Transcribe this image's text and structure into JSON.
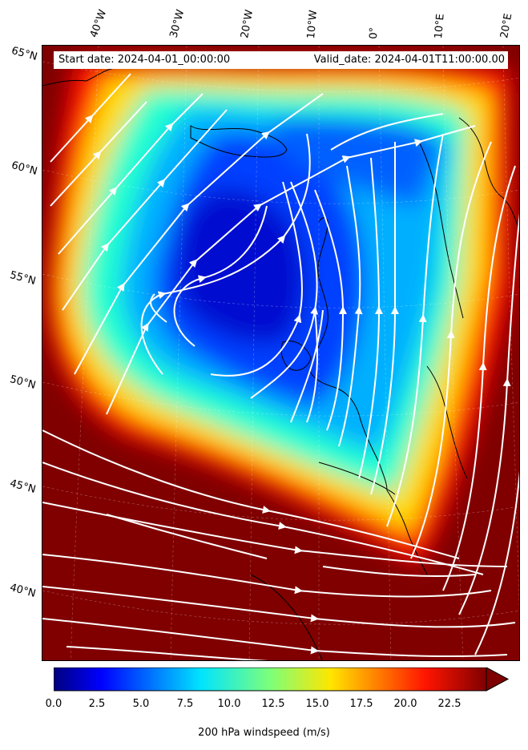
{
  "map": {
    "start_date_label": "Start date: 2024-04-01_00:00:00",
    "valid_date_label": "Valid_date: 2024-04-01T11:00:00.00",
    "variable": "200 hPa windspeed",
    "colormap": "jet",
    "longitude_labels": [
      "40°W",
      "30°W",
      "20°W",
      "10°W",
      "0°",
      "10°E",
      "20°E"
    ],
    "latitude_labels": [
      "65°N",
      "60°N",
      "55°N",
      "50°N",
      "45°N",
      "40°N"
    ],
    "colors": {
      "max_wind": "#800000",
      "min_wind": "#0000c8",
      "streamline": "#ffffff",
      "coastline": "#000000"
    }
  },
  "colorbar": {
    "label": "200 hPa windspeed (m/s)",
    "ticks": [
      "0.0",
      "2.5",
      "5.0",
      "7.5",
      "10.0",
      "12.5",
      "15.0",
      "17.5",
      "20.0",
      "22.5"
    ],
    "min": 0,
    "max": 25,
    "extend": "max"
  }
}
